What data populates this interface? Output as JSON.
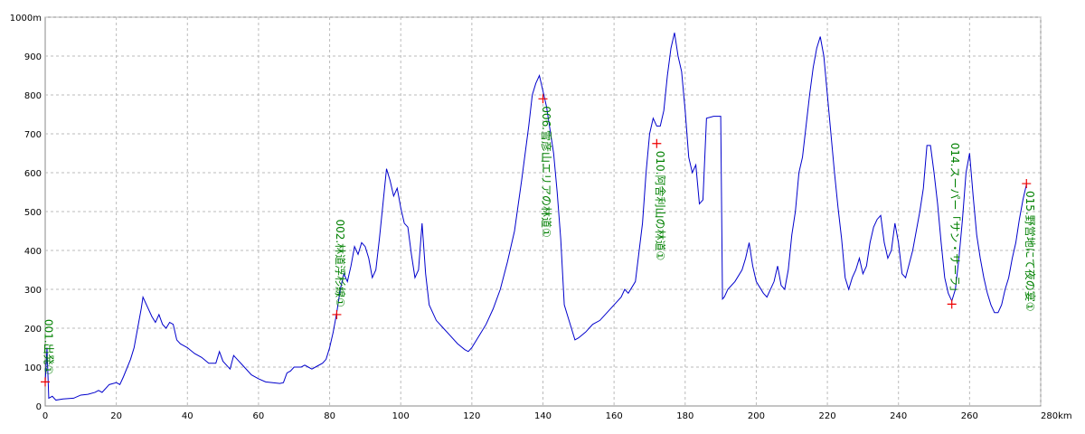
{
  "chart_data": {
    "type": "line",
    "x": [
      0,
      0.5,
      1,
      2,
      3,
      5,
      8,
      10,
      12,
      14,
      15,
      16,
      18,
      20,
      21,
      22,
      24,
      25,
      26,
      27,
      27.5,
      28,
      30,
      31,
      32,
      33,
      34,
      35,
      36,
      37,
      38,
      40,
      42,
      44,
      46,
      48,
      49,
      50,
      52,
      53,
      54,
      56,
      58,
      60,
      62,
      64,
      66,
      67,
      68,
      69,
      70,
      72,
      73,
      74,
      75,
      76,
      78,
      79,
      80,
      81,
      82,
      83,
      84,
      85,
      86,
      87,
      88,
      89,
      90,
      91,
      92,
      93,
      94,
      95,
      96,
      97,
      98,
      99,
      100,
      101,
      102,
      103,
      104,
      105,
      106,
      107,
      108,
      110,
      112,
      114,
      116,
      118,
      119,
      120,
      122,
      124,
      126,
      128,
      130,
      132,
      134,
      136,
      137,
      138,
      139,
      140,
      141,
      142,
      143,
      144,
      145,
      146,
      147,
      148,
      149,
      150,
      152,
      154,
      156,
      158,
      160,
      162,
      163,
      164,
      166,
      168,
      169,
      170,
      171,
      172,
      173,
      174,
      175,
      176,
      177,
      178,
      179,
      180,
      181,
      182,
      183,
      184,
      185,
      186,
      188,
      190,
      190.5,
      191,
      192,
      194,
      196,
      197,
      198,
      199,
      200,
      202,
      203,
      205,
      206,
      207,
      208,
      209,
      210,
      211,
      212,
      213,
      214,
      215,
      216,
      217,
      218,
      219,
      220,
      221,
      222,
      223,
      224,
      225,
      226,
      227,
      228,
      229,
      230,
      231,
      232,
      233,
      234,
      235,
      236,
      237,
      238,
      239,
      240,
      241,
      242,
      244,
      246,
      247,
      248,
      249,
      250,
      251,
      252,
      253,
      254,
      255,
      256,
      257,
      258,
      259,
      260,
      261,
      262,
      263,
      264,
      265,
      266,
      267,
      268,
      269,
      270,
      271,
      272,
      273,
      274,
      275,
      276
    ],
    "series": [
      {
        "color": "#0000cc",
        "values": [
          60,
          150,
          20,
          25,
          15,
          18,
          20,
          28,
          30,
          35,
          40,
          35,
          55,
          60,
          55,
          75,
          120,
          150,
          200,
          250,
          280,
          270,
          230,
          215,
          235,
          210,
          200,
          215,
          210,
          170,
          160,
          150,
          135,
          125,
          110,
          110,
          140,
          115,
          95,
          130,
          120,
          100,
          80,
          70,
          62,
          60,
          58,
          60,
          85,
          90,
          100,
          100,
          105,
          100,
          95,
          100,
          110,
          120,
          150,
          190,
          240,
          300,
          340,
          320,
          360,
          410,
          390,
          420,
          410,
          380,
          330,
          350,
          430,
          520,
          610,
          580,
          540,
          560,
          510,
          470,
          460,
          390,
          330,
          350,
          470,
          340,
          260,
          220,
          200,
          180,
          160,
          145,
          140,
          150,
          180,
          210,
          250,
          300,
          370,
          450,
          580,
          720,
          800,
          830,
          850,
          810,
          770,
          710,
          650,
          550,
          430,
          260,
          230,
          200,
          170,
          175,
          190,
          210,
          220,
          240,
          260,
          280,
          300,
          290,
          320,
          470,
          600,
          700,
          740,
          720,
          720,
          760,
          850,
          920,
          960,
          900,
          860,
          760,
          640,
          600,
          620,
          520,
          530,
          740,
          745,
          745,
          275,
          280,
          300,
          320,
          350,
          380,
          420,
          360,
          320,
          290,
          280,
          320,
          360,
          310,
          300,
          350,
          440,
          500,
          600,
          640,
          720,
          800,
          870,
          920,
          950,
          900,
          800,
          700,
          600,
          510,
          430,
          330,
          300,
          330,
          350,
          380,
          340,
          360,
          420,
          460,
          480,
          490,
          420,
          380,
          400,
          470,
          420,
          340,
          330,
          400,
          500,
          560,
          670,
          670,
          600,
          520,
          420,
          330,
          290,
          270,
          300,
          380,
          480,
          600,
          650,
          540,
          440,
          380,
          330,
          290,
          260,
          240,
          240,
          260,
          300,
          330,
          380,
          420,
          480,
          530,
          570
        ]
      }
    ],
    "annotations": [
      {
        "x": 0,
        "y": 62,
        "label": "001.出発①"
      },
      {
        "x": 82,
        "y": 235,
        "label": "002.林道浮杉線①"
      },
      {
        "x": 140,
        "y": 790,
        "label": "006.雪彦山エリアの林道①"
      },
      {
        "x": 172,
        "y": 675,
        "label": "010.阿舎利山の林道①"
      },
      {
        "x": 255,
        "y": 262,
        "label": "014.スーパー「サン・サーラ」"
      },
      {
        "x": 276,
        "y": 572,
        "label": "015.野営地にて夜の宴①"
      }
    ],
    "xlim": [
      0,
      280
    ],
    "ylim": [
      0,
      1000
    ],
    "xticks": [
      0,
      20,
      40,
      60,
      80,
      100,
      120,
      140,
      160,
      180,
      200,
      220,
      240,
      260,
      {
        "value": 280,
        "label": "280km"
      }
    ],
    "yticks": [
      0,
      100,
      200,
      300,
      400,
      500,
      600,
      700,
      800,
      900,
      {
        "value": 1000,
        "label": "1000m"
      }
    ],
    "grid": true
  }
}
